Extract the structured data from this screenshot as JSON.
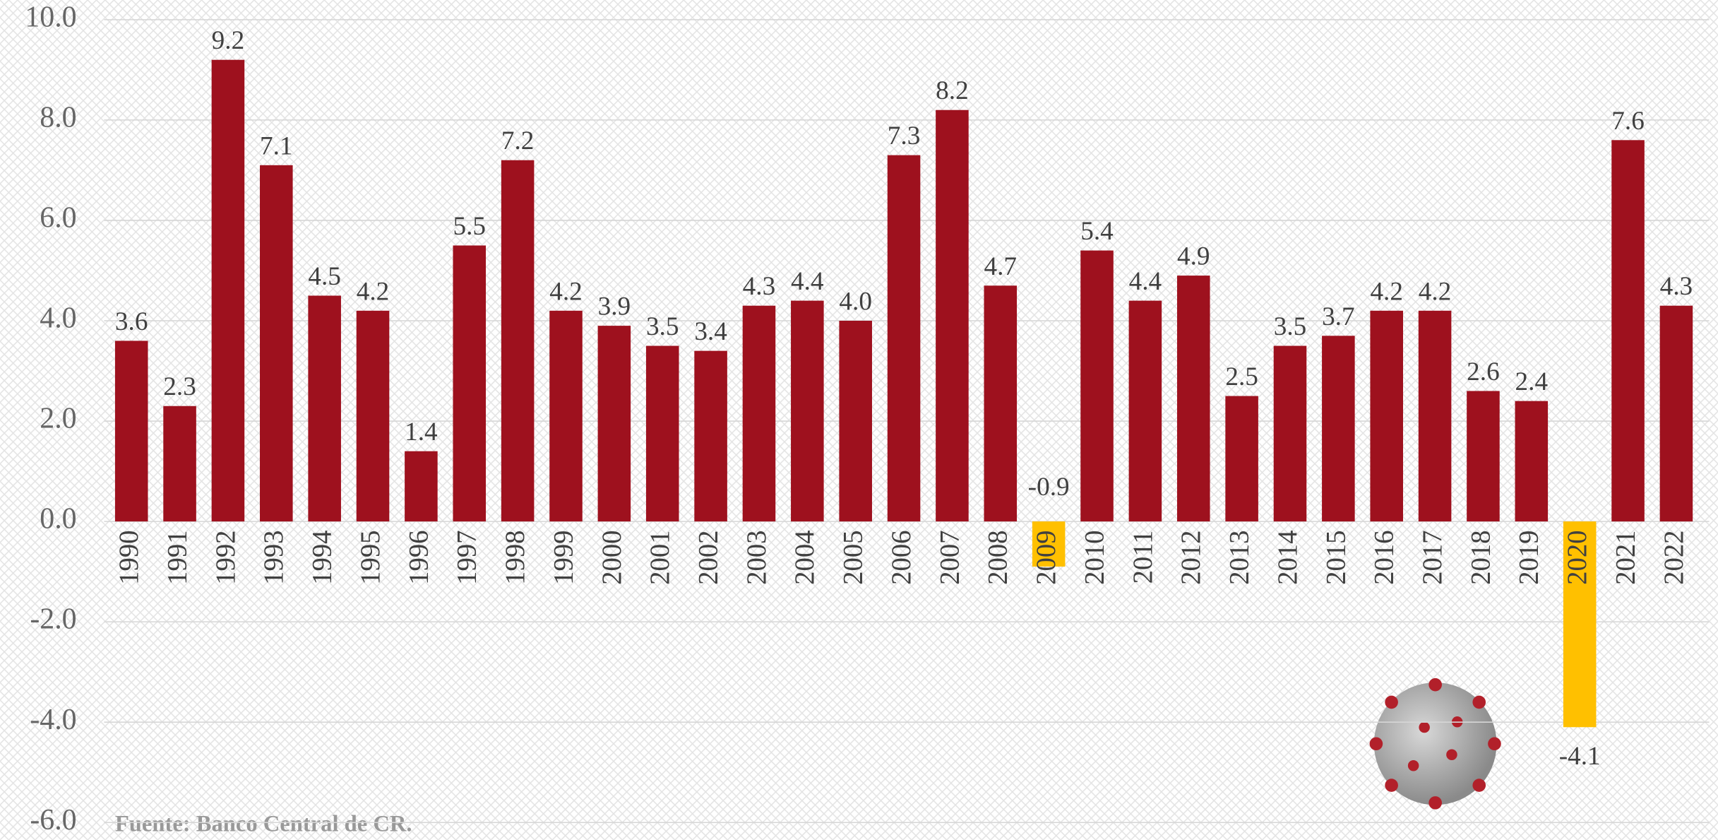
{
  "chart_data": {
    "type": "bar",
    "source": "Fuente: Banco Central de CR.",
    "categories": [
      "1990",
      "1991",
      "1992",
      "1993",
      "1994",
      "1995",
      "1996",
      "1997",
      "1998",
      "1999",
      "2000",
      "2001",
      "2002",
      "2003",
      "2004",
      "2005",
      "2006",
      "2007",
      "2008",
      "2009",
      "2010",
      "2011",
      "2012",
      "2013",
      "2014",
      "2015",
      "2016",
      "2017",
      "2018",
      "2019",
      "2020",
      "2021",
      "2022"
    ],
    "values": [
      3.6,
      2.3,
      9.2,
      7.1,
      4.5,
      4.2,
      1.4,
      5.5,
      7.2,
      4.2,
      3.9,
      3.5,
      3.4,
      4.3,
      4.4,
      4.0,
      7.3,
      8.2,
      4.7,
      -0.9,
      5.4,
      4.4,
      4.9,
      2.5,
      3.5,
      3.7,
      4.2,
      4.2,
      2.6,
      2.4,
      -4.1,
      7.6,
      4.3
    ],
    "value_labels": [
      "3.6",
      "2.3",
      "9.2",
      "7.1",
      "4.5",
      "4.2",
      "1.4",
      "5.5",
      "7.2",
      "4.2",
      "3.9",
      "3.5",
      "3.4",
      "4.3",
      "4.4",
      "4.0",
      "7.3",
      "8.2",
      "4.7",
      "-0.9",
      "5.4",
      "4.4",
      "4.9",
      "2.5",
      "3.5",
      "3.7",
      "4.2",
      "4.2",
      "2.6",
      "2.4",
      "-4.1",
      "7.6",
      "4.3"
    ],
    "color": "#9e111e",
    "highlight_color": "#ffc000",
    "highlight": [
      "2009",
      "2020"
    ],
    "ylim": [
      -6,
      10
    ],
    "yticks": [
      {
        "value": -6,
        "label": "-6.0"
      },
      {
        "value": -4,
        "label": "-4.0"
      },
      {
        "value": -2,
        "label": "-2.0"
      },
      {
        "value": 0,
        "label": "0.0"
      },
      {
        "value": 2,
        "label": "2.0"
      },
      {
        "value": 4,
        "label": "4.0"
      },
      {
        "value": 6,
        "label": "6.0"
      },
      {
        "value": 8,
        "label": "8.0"
      },
      {
        "value": 10,
        "label": "10.0"
      }
    ],
    "grid": true
  }
}
